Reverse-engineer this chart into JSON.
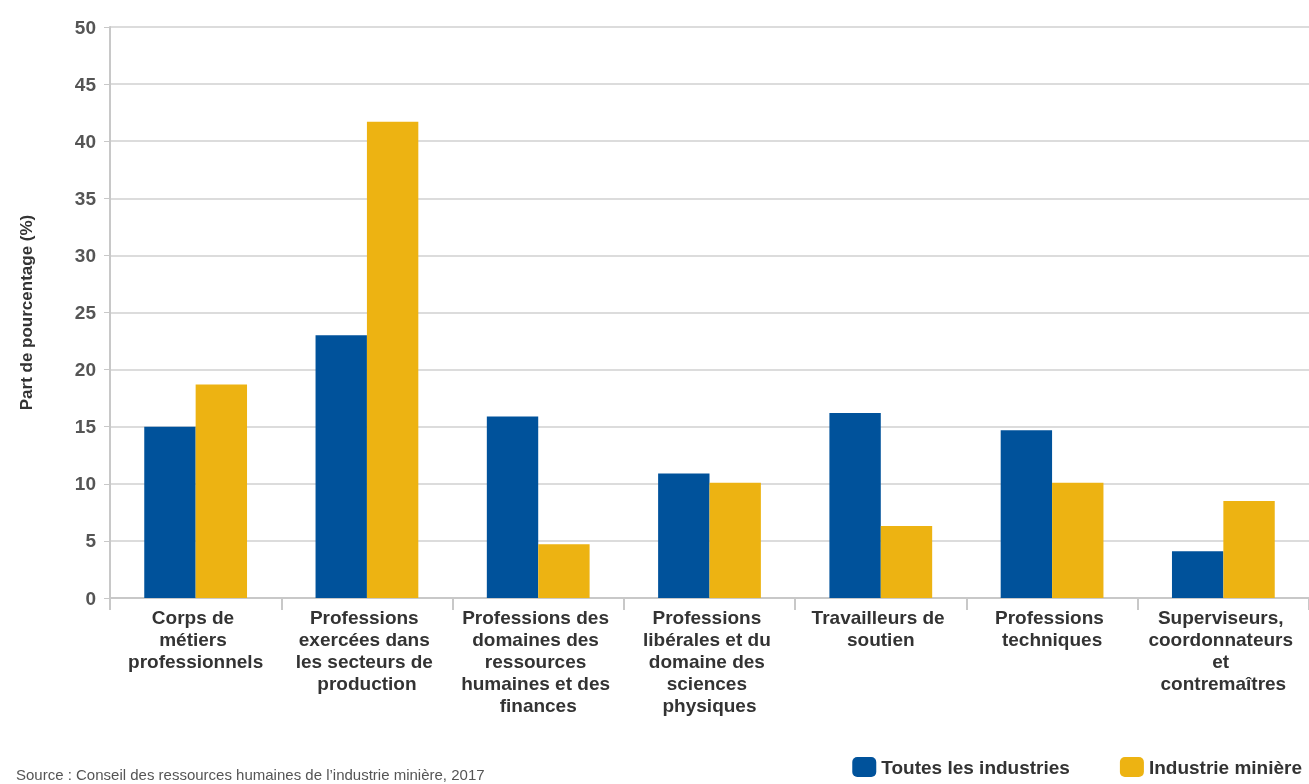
{
  "chart_data": {
    "type": "bar",
    "ylabel": "Part de pourcentage (%)",
    "categories": [
      "Corps de métiers professionnels",
      "Professions exercées dans les secteurs de production",
      "Professions des domaines des ressources humaines et des finances",
      "Professions libérales et du domaine des sciences physiques",
      "Travailleurs de soutien",
      "Professions techniques",
      "Superviseurs, coordonnateurs et contremaîtres"
    ],
    "series": [
      {
        "name": "Toutes les industries",
        "color": "#00529b",
        "values": [
          15.0,
          23.0,
          15.9,
          10.9,
          16.2,
          14.7,
          4.1
        ]
      },
      {
        "name": "Industrie minière",
        "color": "#edb312",
        "values": [
          18.7,
          41.7,
          4.7,
          10.1,
          6.3,
          10.1,
          8.5
        ]
      }
    ],
    "ylim": [
      0,
      50
    ],
    "yticks": [
      0,
      5,
      10,
      15,
      20,
      25,
      30,
      35,
      40,
      45,
      50
    ],
    "grid": "y",
    "legend": "bottom right",
    "annotations": [
      "Source : Conseil des ressources humaines de l’industrie minière, 2017"
    ]
  }
}
